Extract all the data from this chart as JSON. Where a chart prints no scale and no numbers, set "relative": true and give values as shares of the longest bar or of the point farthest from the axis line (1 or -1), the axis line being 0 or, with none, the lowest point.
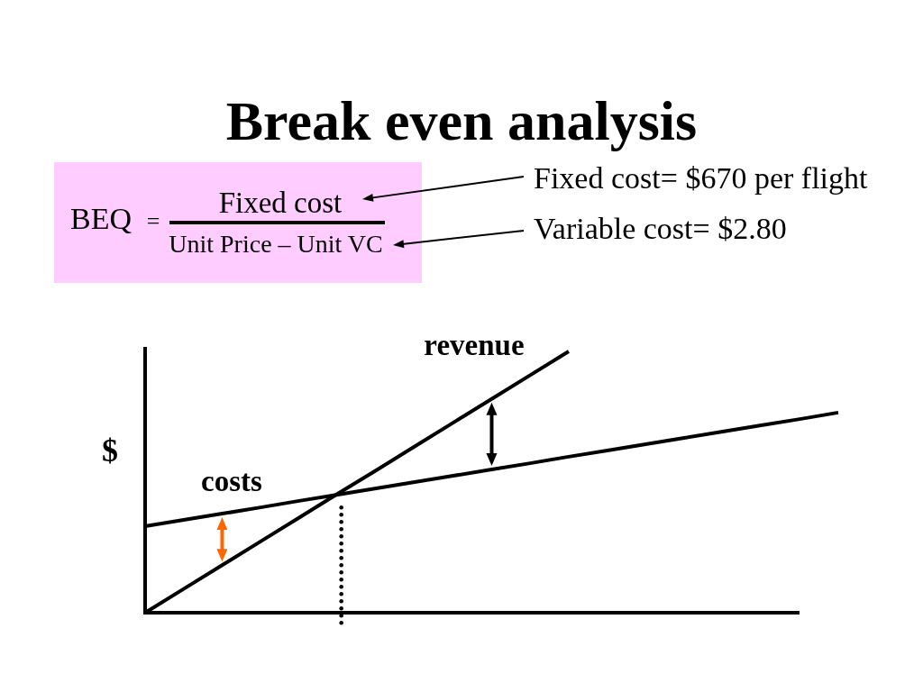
{
  "chart_data": {
    "type": "line",
    "title": "Break even analysis",
    "ylabel": "$",
    "relative": true,
    "categories": [
      null,
      null,
      null,
      null,
      null,
      null,
      null,
      null,
      null,
      null,
      null,
      null,
      null,
      null,
      null,
      null,
      null,
      null,
      null
    ],
    "series": [
      {
        "name": "revenue",
        "color": "#000000",
        "values": [
          0,
          0.091,
          0.182,
          0.273,
          0.364,
          0.455,
          0.545,
          0.636,
          0.727,
          0.818,
          0.909,
          1,
          null,
          null,
          null,
          null,
          null,
          null,
          null
        ]
      },
      {
        "name": "costs",
        "color": "#000000",
        "values": [
          0.331,
          0.355,
          0.379,
          0.403,
          0.428,
          0.452,
          0.476,
          0.5,
          0.524,
          0.548,
          0.572,
          0.597,
          0.621,
          0.645,
          0.669,
          0.693,
          0.717,
          0.741,
          0.766
        ]
      }
    ],
    "annotations": [
      "BEQ",
      "=",
      "Fixed cost",
      "Unit Price – Unit VC",
      "Fixed cost= $670 per flight",
      "Variable cost= $2.80"
    ]
  }
}
